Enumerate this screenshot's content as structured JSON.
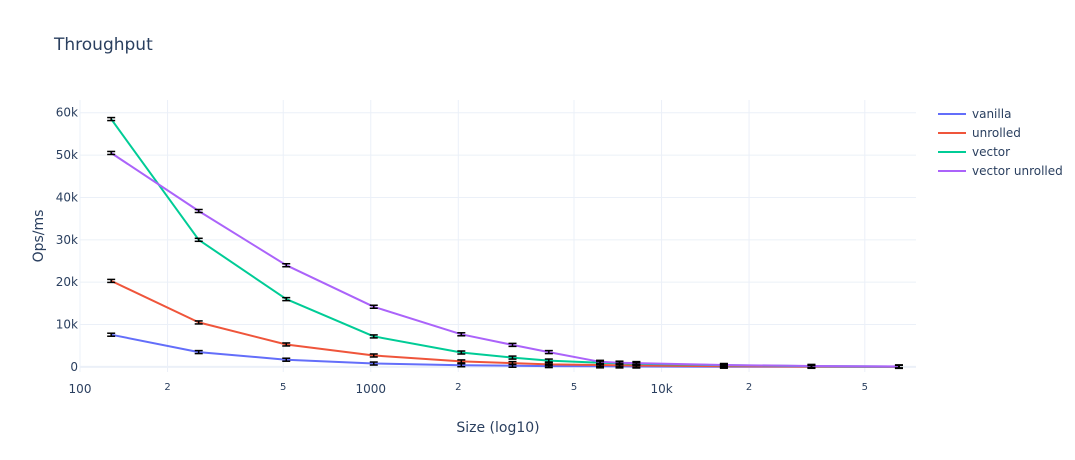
{
  "chart_data": {
    "type": "line",
    "title": "Throughput",
    "xlabel": "Size (log10)",
    "ylabel": "Ops/ms",
    "x_scale": "log",
    "xlim": [
      100,
      75000
    ],
    "ylim": [
      -1200,
      63000
    ],
    "x_ticks": [
      {
        "value": 100,
        "label": "100",
        "major": true
      },
      {
        "value": 200,
        "label": "2",
        "major": false
      },
      {
        "value": 500,
        "label": "5",
        "major": false
      },
      {
        "value": 1000,
        "label": "1000",
        "major": true
      },
      {
        "value": 2000,
        "label": "2",
        "major": false
      },
      {
        "value": 5000,
        "label": "5",
        "major": false
      },
      {
        "value": 10000,
        "label": "10k",
        "major": true
      },
      {
        "value": 20000,
        "label": "2",
        "major": false
      },
      {
        "value": 50000,
        "label": "5",
        "major": false
      }
    ],
    "y_ticks": [
      {
        "value": 0,
        "label": "0"
      },
      {
        "value": 10000,
        "label": "10k"
      },
      {
        "value": 20000,
        "label": "20k"
      },
      {
        "value": 30000,
        "label": "30k"
      },
      {
        "value": 40000,
        "label": "40k"
      },
      {
        "value": 50000,
        "label": "50k"
      },
      {
        "value": 60000,
        "label": "60k"
      }
    ],
    "grid": true,
    "legend_position": "top-right",
    "x": [
      128,
      256,
      512,
      1024,
      2048,
      3072,
      4096,
      6144,
      7168,
      8192,
      16384,
      32768,
      65536
    ],
    "series": [
      {
        "name": "vanilla",
        "color": "#636efa",
        "values": [
          7600,
          3500,
          1700,
          800,
          400,
          280,
          200,
          140,
          120,
          100,
          50,
          25,
          12
        ]
      },
      {
        "name": "unrolled",
        "color": "#ef553b",
        "values": [
          20300,
          10500,
          5300,
          2700,
          1300,
          900,
          600,
          450,
          380,
          330,
          170,
          85,
          40
        ]
      },
      {
        "name": "vector",
        "color": "#00cc96",
        "values": [
          58500,
          30000,
          16000,
          7200,
          3400,
          2200,
          1500,
          1000,
          850,
          750,
          380,
          190,
          95
        ]
      },
      {
        "name": "vector unrolled",
        "color": "#ab63fa",
        "values": [
          50500,
          36800,
          24000,
          14200,
          7700,
          5200,
          3500,
          1200,
          1000,
          900,
          450,
          220,
          110
        ]
      }
    ]
  }
}
